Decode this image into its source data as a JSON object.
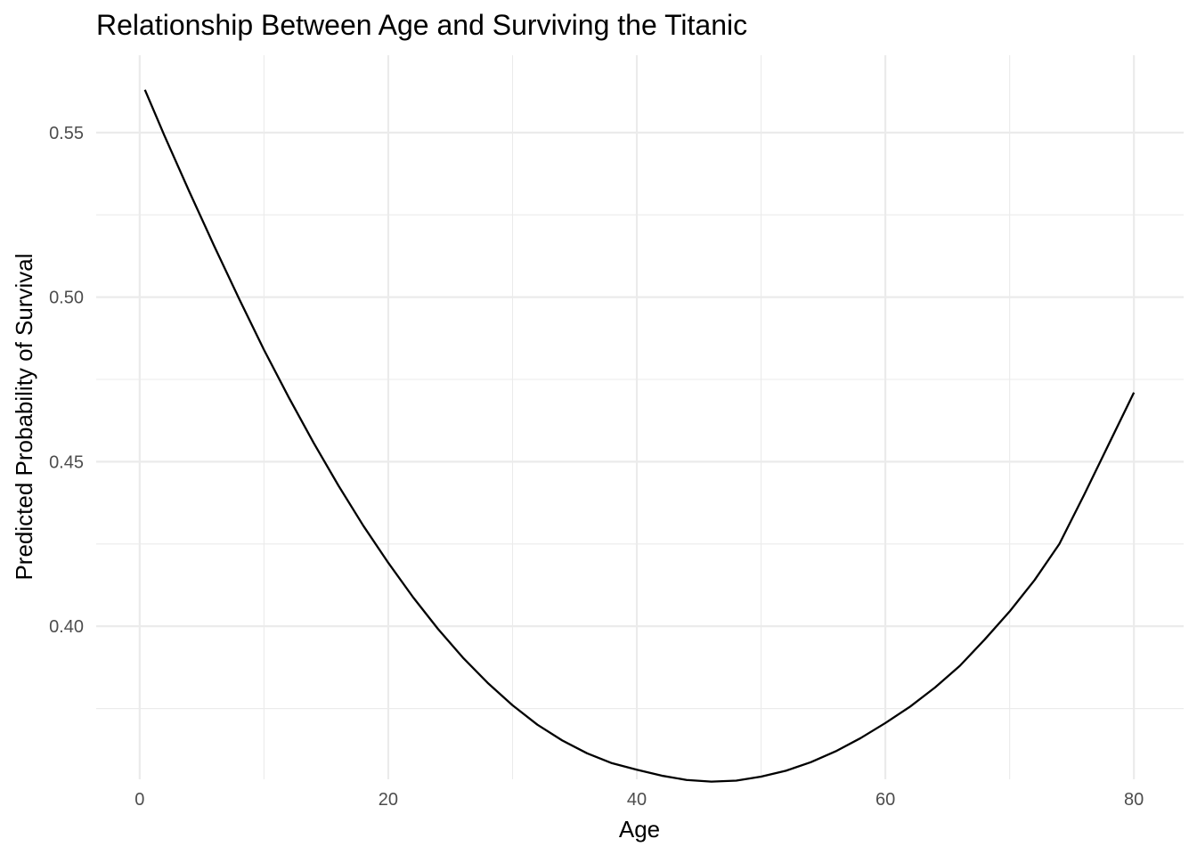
{
  "chart_data": {
    "type": "line",
    "title": "Relationship Between Age and Surviving the Titanic",
    "xlabel": "Age",
    "ylabel": "Predicted Probability of Survival",
    "xlim": [
      -3.5,
      84
    ],
    "ylim": [
      0.3535,
      0.5735
    ],
    "x_ticks": [
      0,
      20,
      40,
      60,
      80
    ],
    "x_tick_labels": [
      "0",
      "20",
      "40",
      "60",
      "80"
    ],
    "x_minor": [
      10,
      30,
      50,
      70
    ],
    "y_ticks": [
      0.4,
      0.45,
      0.5,
      0.55
    ],
    "y_tick_labels": [
      "0.40",
      "0.45",
      "0.50",
      "0.55"
    ],
    "y_minor": [
      0.375,
      0.425,
      0.475,
      0.525
    ],
    "grid": true,
    "legend": "none",
    "line_color": "#000000",
    "grid_color": "#ebebeb",
    "series": [
      {
        "x": [
          0.42,
          2,
          4,
          6,
          8,
          10,
          12,
          14,
          16,
          18,
          20,
          22,
          24,
          26,
          28,
          30,
          32,
          34,
          36,
          38,
          40,
          42,
          44,
          46,
          48,
          50,
          52,
          54,
          56,
          58,
          60,
          62,
          64,
          66,
          68,
          70,
          72,
          74,
          76,
          78,
          80
        ],
        "y": [
          0.563,
          0.549,
          0.532,
          0.5155,
          0.4995,
          0.484,
          0.4695,
          0.4557,
          0.4427,
          0.4305,
          0.4193,
          0.4088,
          0.3992,
          0.3905,
          0.3828,
          0.376,
          0.3701,
          0.3653,
          0.3614,
          0.3584,
          0.3564,
          0.3546,
          0.3533,
          0.3528,
          0.3531,
          0.3543,
          0.3561,
          0.3587,
          0.362,
          0.366,
          0.3706,
          0.3756,
          0.3814,
          0.388,
          0.396,
          0.4045,
          0.414,
          0.425,
          0.44,
          0.4555,
          0.471
        ]
      }
    ]
  }
}
